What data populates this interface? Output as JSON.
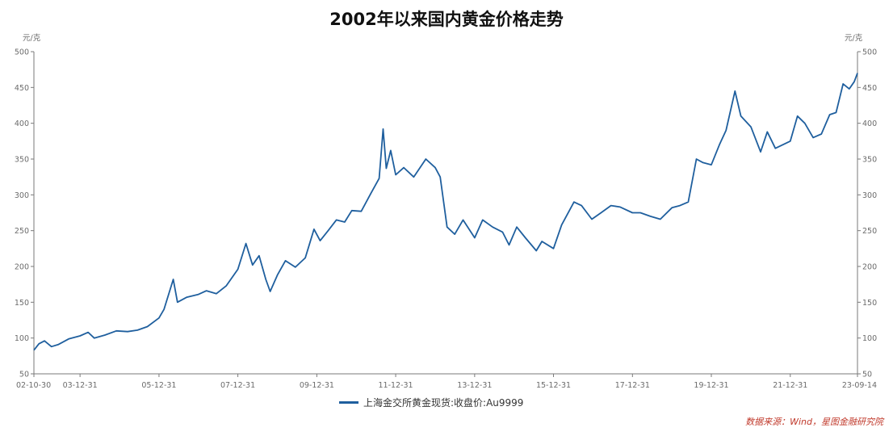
{
  "chart_data": {
    "type": "line",
    "title": "2002年以来国内黄金价格走势",
    "y_unit_left": "元/克",
    "y_unit_right": "元/克",
    "ylim": [
      50,
      500
    ],
    "yticks": [
      50,
      100,
      150,
      200,
      250,
      300,
      350,
      400,
      450,
      500
    ],
    "xlim": [
      "2002-10-30",
      "2023-09-14"
    ],
    "xticks": [
      "02-10-30",
      "03-12-31",
      "05-12-31",
      "07-12-31",
      "09-12-31",
      "11-12-31",
      "13-12-31",
      "15-12-31",
      "17-12-31",
      "19-12-31",
      "21-12-31",
      "23-09-14"
    ],
    "xtick_dates": [
      "2002-10-30",
      "2003-12-31",
      "2005-12-31",
      "2007-12-31",
      "2009-12-31",
      "2011-12-31",
      "2013-12-31",
      "2015-12-31",
      "2017-12-31",
      "2019-12-31",
      "2021-12-31",
      "2023-09-14"
    ],
    "grid": false,
    "legend_position": "bottom",
    "series": [
      {
        "name": "上海金交所黄金现货:收盘价:Au9999",
        "color": "#1f5f9e",
        "points": [
          [
            "2002-10-30",
            83
          ],
          [
            "2002-12-15",
            92
          ],
          [
            "2003-02-05",
            96
          ],
          [
            "2003-04-10",
            88
          ],
          [
            "2003-06-15",
            91
          ],
          [
            "2003-09-20",
            99
          ],
          [
            "2003-12-31",
            103
          ],
          [
            "2004-03-15",
            108
          ],
          [
            "2004-05-10",
            100
          ],
          [
            "2004-08-15",
            104
          ],
          [
            "2004-12-01",
            110
          ],
          [
            "2005-03-15",
            109
          ],
          [
            "2005-06-15",
            111
          ],
          [
            "2005-09-15",
            116
          ],
          [
            "2005-12-31",
            128
          ],
          [
            "2006-02-15",
            140
          ],
          [
            "2006-05-12",
            182
          ],
          [
            "2006-06-20",
            150
          ],
          [
            "2006-09-15",
            157
          ],
          [
            "2006-12-31",
            161
          ],
          [
            "2007-03-15",
            166
          ],
          [
            "2007-06-15",
            162
          ],
          [
            "2007-09-15",
            173
          ],
          [
            "2007-12-31",
            196
          ],
          [
            "2008-03-15",
            232
          ],
          [
            "2008-05-15",
            202
          ],
          [
            "2008-07-15",
            215
          ],
          [
            "2008-09-15",
            182
          ],
          [
            "2008-10-25",
            165
          ],
          [
            "2008-12-31",
            188
          ],
          [
            "2009-03-15",
            208
          ],
          [
            "2009-06-15",
            199
          ],
          [
            "2009-09-15",
            212
          ],
          [
            "2009-12-05",
            252
          ],
          [
            "2010-01-31",
            236
          ],
          [
            "2010-04-15",
            250
          ],
          [
            "2010-06-30",
            265
          ],
          [
            "2010-09-15",
            262
          ],
          [
            "2010-11-20",
            278
          ],
          [
            "2011-02-15",
            277
          ],
          [
            "2011-05-15",
            302
          ],
          [
            "2011-07-31",
            323
          ],
          [
            "2011-09-06",
            392
          ],
          [
            "2011-10-05",
            337
          ],
          [
            "2011-11-15",
            362
          ],
          [
            "2011-12-31",
            328
          ],
          [
            "2012-03-15",
            338
          ],
          [
            "2012-06-15",
            325
          ],
          [
            "2012-10-05",
            350
          ],
          [
            "2012-12-31",
            338
          ],
          [
            "2013-02-15",
            325
          ],
          [
            "2013-04-20",
            255
          ],
          [
            "2013-06-30",
            245
          ],
          [
            "2013-09-15",
            265
          ],
          [
            "2013-12-31",
            240
          ],
          [
            "2014-03-15",
            265
          ],
          [
            "2014-06-15",
            255
          ],
          [
            "2014-09-15",
            248
          ],
          [
            "2014-11-15",
            230
          ],
          [
            "2015-01-25",
            255
          ],
          [
            "2015-04-15",
            240
          ],
          [
            "2015-07-25",
            222
          ],
          [
            "2015-09-15",
            235
          ],
          [
            "2015-12-31",
            225
          ],
          [
            "2016-03-15",
            258
          ],
          [
            "2016-07-08",
            290
          ],
          [
            "2016-09-15",
            285
          ],
          [
            "2016-12-20",
            266
          ],
          [
            "2017-03-15",
            275
          ],
          [
            "2017-06-15",
            285
          ],
          [
            "2017-09-08",
            283
          ],
          [
            "2017-12-31",
            275
          ],
          [
            "2018-03-15",
            275
          ],
          [
            "2018-06-15",
            270
          ],
          [
            "2018-09-15",
            266
          ],
          [
            "2018-12-31",
            282
          ],
          [
            "2019-03-15",
            285
          ],
          [
            "2019-05-31",
            290
          ],
          [
            "2019-08-15",
            350
          ],
          [
            "2019-10-15",
            345
          ],
          [
            "2019-12-31",
            342
          ],
          [
            "2020-03-15",
            370
          ],
          [
            "2020-05-15",
            390
          ],
          [
            "2020-08-06",
            445
          ],
          [
            "2020-09-30",
            410
          ],
          [
            "2020-12-31",
            395
          ],
          [
            "2021-03-31",
            360
          ],
          [
            "2021-06-01",
            388
          ],
          [
            "2021-08-15",
            365
          ],
          [
            "2021-12-31",
            375
          ],
          [
            "2022-03-08",
            410
          ],
          [
            "2022-05-15",
            400
          ],
          [
            "2022-07-31",
            380
          ],
          [
            "2022-10-15",
            385
          ],
          [
            "2022-12-31",
            412
          ],
          [
            "2023-02-28",
            415
          ],
          [
            "2023-05-04",
            455
          ],
          [
            "2023-06-30",
            448
          ],
          [
            "2023-08-15",
            458
          ],
          [
            "2023-09-14",
            470
          ]
        ]
      }
    ]
  },
  "source_note": "数据来源：Wind，星图金融研究院"
}
